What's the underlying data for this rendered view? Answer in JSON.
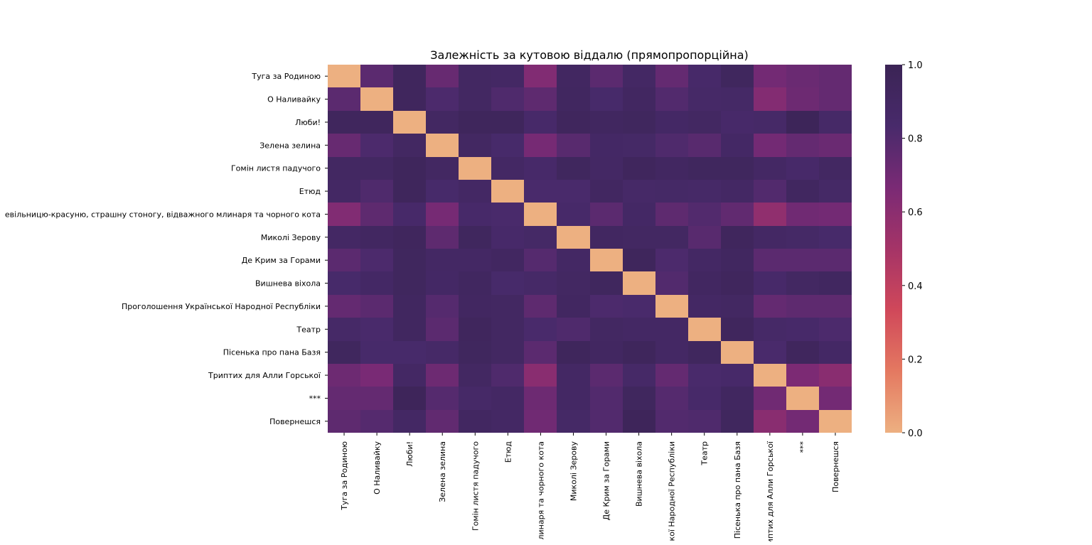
{
  "chart_data": {
    "type": "heatmap",
    "title": "Залежність за кутовою віддалю (прямопропорційна)",
    "xlabel": "",
    "ylabel": "",
    "categories": [
      "Туга за Родиною",
      "О Наливайку",
      "Люби!",
      "Зелена зелина",
      "Гомін листя падучого",
      "Етюд",
      "Казка про Чорну Невільницю-красуню, страшну стоногу, відважного млинаря та чорного кота",
      "Миколі Зерову",
      "Де Крим за Горами",
      "Вишнева віхола",
      "Проголошення Української Народної Республіки",
      "Театр",
      "Пісенька про пана Базя",
      "Триптих для Алли Горської",
      "***",
      "Повернешся"
    ],
    "x_tick_labels": [
      "Туга за Родиною",
      "О Наливайку",
      "Люби!",
      "Зелена зелина",
      "Гомін листя падучого",
      "Етюд",
      "линаря та чорного кота",
      "Миколі Зерову",
      "Де Крим за Горами",
      "Вишнева віхола",
      "кої Народної Республіки",
      "Театр",
      "Пісенька про пана Базя",
      "иптих для Алли Горської",
      "***",
      "Повернешся"
    ],
    "y_tick_labels": [
      "Туга за Родиною",
      "О Наливайку",
      "Люби!",
      "Зелена зелина",
      "Гомін листя падучого",
      "Етюд",
      "евільницю-красуню, страшну стоногу, відважного млинаря та чорного кота",
      "Миколі Зерову",
      "Де Крим за Горами",
      "Вишнева віхола",
      "Проголошення Української Народної Республіки",
      "Театр",
      "Пісенька про пана Базя",
      "Триптих для Алли Горської",
      "***",
      "Повернешся"
    ],
    "values": [
      [
        0.0,
        0.77,
        0.94,
        0.73,
        0.9,
        0.89,
        0.64,
        0.91,
        0.77,
        0.89,
        0.74,
        0.85,
        0.93,
        0.69,
        0.72,
        0.74
      ],
      [
        0.77,
        0.0,
        0.94,
        0.82,
        0.9,
        0.81,
        0.76,
        0.92,
        0.84,
        0.91,
        0.8,
        0.86,
        0.87,
        0.63,
        0.71,
        0.74
      ],
      [
        0.94,
        0.94,
        0.0,
        0.9,
        0.95,
        0.95,
        0.85,
        0.94,
        0.92,
        0.93,
        0.88,
        0.9,
        0.85,
        0.86,
        0.97,
        0.86
      ],
      [
        0.73,
        0.82,
        0.9,
        0.0,
        0.9,
        0.84,
        0.68,
        0.78,
        0.88,
        0.87,
        0.81,
        0.78,
        0.88,
        0.69,
        0.74,
        0.72
      ],
      [
        0.9,
        0.9,
        0.95,
        0.9,
        0.0,
        0.89,
        0.85,
        0.93,
        0.89,
        0.94,
        0.91,
        0.93,
        0.93,
        0.89,
        0.85,
        0.9
      ],
      [
        0.89,
        0.81,
        0.95,
        0.84,
        0.89,
        0.0,
        0.83,
        0.83,
        0.91,
        0.86,
        0.87,
        0.86,
        0.89,
        0.8,
        0.92,
        0.87
      ],
      [
        0.64,
        0.76,
        0.85,
        0.68,
        0.85,
        0.83,
        0.0,
        0.85,
        0.77,
        0.88,
        0.76,
        0.8,
        0.75,
        0.58,
        0.7,
        0.69
      ],
      [
        0.89,
        0.91,
        0.94,
        0.76,
        0.93,
        0.85,
        0.87,
        0.0,
        0.91,
        0.9,
        0.9,
        0.78,
        0.94,
        0.89,
        0.87,
        0.84
      ],
      [
        0.77,
        0.82,
        0.93,
        0.89,
        0.89,
        0.91,
        0.79,
        0.89,
        0.0,
        0.95,
        0.82,
        0.89,
        0.92,
        0.77,
        0.77,
        0.77
      ],
      [
        0.84,
        0.88,
        0.93,
        0.88,
        0.92,
        0.84,
        0.86,
        0.9,
        0.93,
        0.0,
        0.8,
        0.91,
        0.94,
        0.85,
        0.9,
        0.92
      ],
      [
        0.74,
        0.77,
        0.92,
        0.79,
        0.91,
        0.9,
        0.76,
        0.91,
        0.82,
        0.83,
        0.0,
        0.89,
        0.9,
        0.74,
        0.76,
        0.76
      ],
      [
        0.86,
        0.83,
        0.92,
        0.77,
        0.94,
        0.9,
        0.83,
        0.81,
        0.9,
        0.89,
        0.89,
        0.0,
        0.94,
        0.86,
        0.85,
        0.82
      ],
      [
        0.93,
        0.84,
        0.84,
        0.86,
        0.93,
        0.9,
        0.77,
        0.95,
        0.91,
        0.95,
        0.89,
        0.93,
        0.0,
        0.83,
        0.94,
        0.88
      ],
      [
        0.71,
        0.67,
        0.89,
        0.71,
        0.9,
        0.81,
        0.61,
        0.89,
        0.77,
        0.86,
        0.74,
        0.83,
        0.85,
        0.0,
        0.66,
        0.61
      ],
      [
        0.74,
        0.74,
        0.96,
        0.79,
        0.86,
        0.89,
        0.71,
        0.89,
        0.8,
        0.93,
        0.79,
        0.85,
        0.92,
        0.7,
        0.0,
        0.69
      ],
      [
        0.76,
        0.79,
        0.89,
        0.75,
        0.91,
        0.89,
        0.7,
        0.87,
        0.8,
        0.96,
        0.8,
        0.81,
        0.93,
        0.61,
        0.69,
        0.0
      ]
    ],
    "colorbar": {
      "vmin": 0.0,
      "vmax": 1.0,
      "ticks": [
        "0.0",
        "0.2",
        "0.4",
        "0.6",
        "0.8",
        "1.0"
      ]
    },
    "colormap": [
      "#edb081",
      "#e47961",
      "#d0485a",
      "#a53467",
      "#7a2a75",
      "#482a6b",
      "#3b2455"
    ]
  }
}
